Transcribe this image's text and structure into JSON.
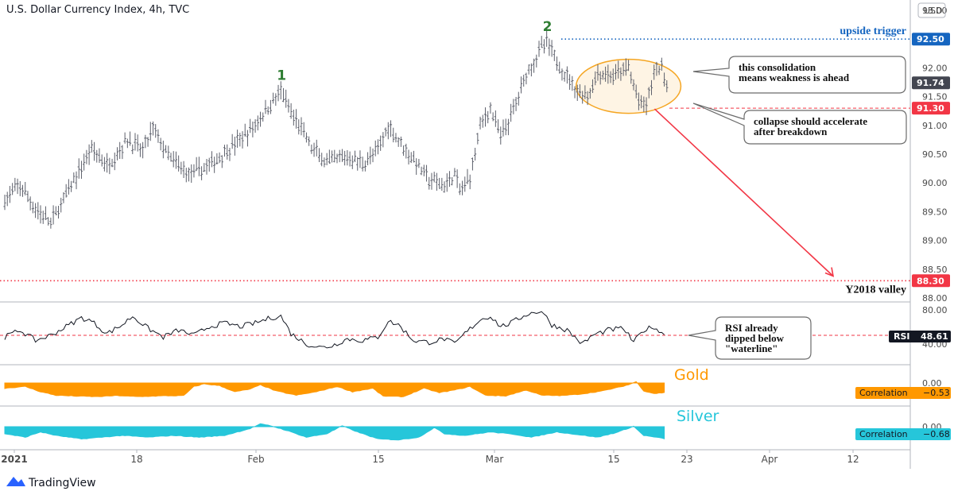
{
  "header": {
    "title": "U.S. Dollar Currency Index, 4h, TVC",
    "currency": "USD"
  },
  "footer": {
    "brand": "TradingView"
  },
  "chart_data": {
    "type": "ohlc",
    "title": "U.S. Dollar Currency Index, 4h, TVC",
    "y_ticks": [
      "93.00",
      "92.50",
      "92.00",
      "91.50",
      "91.00",
      "90.50",
      "90.00",
      "89.50",
      "89.00",
      "88.50",
      "88.00"
    ],
    "ylim": [
      88.0,
      93.0
    ],
    "x_ticks": [
      "2021",
      "18",
      "Feb",
      "15",
      "Mar",
      "15",
      "23",
      "Apr",
      "12"
    ],
    "price_path": [
      [
        0,
        89.7
      ],
      [
        6,
        89.95
      ],
      [
        12,
        89.55
      ],
      [
        18,
        89.3
      ],
      [
        26,
        89.95
      ],
      [
        34,
        90.6
      ],
      [
        40,
        90.3
      ],
      [
        48,
        90.75
      ],
      [
        54,
        90.55
      ],
      [
        58,
        90.95
      ],
      [
        64,
        90.45
      ],
      [
        72,
        90.15
      ],
      [
        80,
        90.3
      ],
      [
        88,
        90.6
      ],
      [
        96,
        90.9
      ],
      [
        102,
        91.25
      ],
      [
        108,
        91.6
      ],
      [
        112,
        91.2
      ],
      [
        116,
        90.95
      ],
      [
        120,
        90.6
      ],
      [
        126,
        90.35
      ],
      [
        134,
        90.45
      ],
      [
        140,
        90.35
      ],
      [
        146,
        90.55
      ],
      [
        150,
        91.0
      ],
      [
        154,
        90.75
      ],
      [
        160,
        90.4
      ],
      [
        166,
        90.05
      ],
      [
        172,
        89.95
      ],
      [
        176,
        90.15
      ],
      [
        178,
        89.85
      ],
      [
        182,
        90.1
      ],
      [
        186,
        91.0
      ],
      [
        190,
        91.3
      ],
      [
        194,
        90.8
      ],
      [
        198,
        91.15
      ],
      [
        204,
        91.9
      ],
      [
        210,
        92.35
      ],
      [
        212,
        92.45
      ],
      [
        216,
        92.1
      ],
      [
        220,
        91.85
      ],
      [
        224,
        91.6
      ],
      [
        228,
        91.5
      ],
      [
        232,
        91.9
      ],
      [
        238,
        91.85
      ],
      [
        244,
        92.0
      ],
      [
        248,
        91.4
      ],
      [
        251,
        91.35
      ],
      [
        254,
        91.9
      ],
      [
        257,
        92.05
      ],
      [
        259,
        91.7
      ]
    ],
    "ohlc_count": 260,
    "levels": [
      {
        "value": 92.5,
        "label": "92.50",
        "note": "upside trigger",
        "color": "#1565c0"
      },
      {
        "value": 91.74,
        "label": "91.74",
        "note": "",
        "color": "#434651"
      },
      {
        "value": 91.3,
        "label": "91.30",
        "note": "",
        "color": "#f23645"
      },
      {
        "value": 88.3,
        "label": "88.30",
        "note": "Y2018 valley",
        "color": "#f23645"
      }
    ],
    "wave_labels": [
      {
        "text": "1",
        "x": 108,
        "y": 91.6
      },
      {
        "text": "2",
        "x": 212,
        "y": 92.45
      }
    ],
    "forecast_arrow": {
      "from": [
        248,
        91.3
      ],
      "to": [
        310,
        88.38
      ],
      "color": "#f23645"
    },
    "consolidation_ellipse": {
      "x_from": 226,
      "x_to": 262,
      "y_center": 91.68,
      "color": "#f5a623"
    },
    "callouts": [
      {
        "lines": [
          "this consolidation",
          "means weakness is ahead"
        ]
      },
      {
        "lines": [
          "collapse should accelerate",
          "after breakdown"
        ]
      },
      {
        "lines": [
          "RSI already",
          "dipped below",
          "\"waterline\""
        ]
      }
    ],
    "rsi": {
      "label": "RSI",
      "value": "48.61",
      "y_ticks": [
        "80.00",
        "40.00"
      ],
      "waterline": 50,
      "path": [
        [
          0,
          48
        ],
        [
          6,
          56
        ],
        [
          12,
          44
        ],
        [
          18,
          50
        ],
        [
          24,
          60
        ],
        [
          30,
          70
        ],
        [
          34,
          66
        ],
        [
          40,
          52
        ],
        [
          46,
          62
        ],
        [
          50,
          72
        ],
        [
          56,
          58
        ],
        [
          62,
          48
        ],
        [
          68,
          56
        ],
        [
          74,
          50
        ],
        [
          80,
          60
        ],
        [
          86,
          64
        ],
        [
          92,
          60
        ],
        [
          98,
          64
        ],
        [
          104,
          70
        ],
        [
          108,
          72
        ],
        [
          112,
          52
        ],
        [
          118,
          40
        ],
        [
          124,
          36
        ],
        [
          128,
          38
        ],
        [
          134,
          46
        ],
        [
          140,
          44
        ],
        [
          146,
          48
        ],
        [
          150,
          66
        ],
        [
          154,
          62
        ],
        [
          160,
          44
        ],
        [
          166,
          42
        ],
        [
          172,
          46
        ],
        [
          176,
          40
        ],
        [
          180,
          52
        ],
        [
          186,
          68
        ],
        [
          190,
          72
        ],
        [
          194,
          60
        ],
        [
          198,
          64
        ],
        [
          204,
          74
        ],
        [
          210,
          78
        ],
        [
          214,
          62
        ],
        [
          220,
          56
        ],
        [
          226,
          40
        ],
        [
          230,
          50
        ],
        [
          236,
          56
        ],
        [
          242,
          58
        ],
        [
          246,
          42
        ],
        [
          250,
          56
        ],
        [
          254,
          60
        ],
        [
          257,
          52
        ]
      ]
    },
    "gold": {
      "name": "Gold",
      "color": "#ff9800",
      "label": "Correlation",
      "value": "−0.53",
      "y_tick": "0.00",
      "path": [
        [
          0,
          -0.3
        ],
        [
          8,
          -0.2
        ],
        [
          14,
          -0.5
        ],
        [
          20,
          -0.7
        ],
        [
          28,
          -0.75
        ],
        [
          36,
          -0.78
        ],
        [
          44,
          -0.72
        ],
        [
          52,
          -0.78
        ],
        [
          60,
          -0.74
        ],
        [
          70,
          -0.72
        ],
        [
          74,
          -0.2
        ],
        [
          78,
          -0.05
        ],
        [
          84,
          -0.15
        ],
        [
          90,
          -0.5
        ],
        [
          96,
          -0.35
        ],
        [
          100,
          -0.1
        ],
        [
          106,
          -0.45
        ],
        [
          114,
          -0.7
        ],
        [
          122,
          -0.5
        ],
        [
          130,
          -0.2
        ],
        [
          136,
          -0.5
        ],
        [
          144,
          -0.3
        ],
        [
          148,
          -0.75
        ],
        [
          156,
          -0.78
        ],
        [
          164,
          -0.3
        ],
        [
          170,
          -0.55
        ],
        [
          176,
          -0.4
        ],
        [
          182,
          -0.2
        ],
        [
          188,
          -0.7
        ],
        [
          196,
          -0.74
        ],
        [
          204,
          -0.4
        ],
        [
          210,
          -0.7
        ],
        [
          218,
          -0.72
        ],
        [
          226,
          -0.62
        ],
        [
          234,
          -0.45
        ],
        [
          240,
          -0.25
        ],
        [
          244,
          -0.1
        ],
        [
          247,
          0.08
        ],
        [
          250,
          -0.45
        ],
        [
          254,
          -0.6
        ],
        [
          258,
          -0.55
        ]
      ]
    },
    "silver": {
      "name": "Silver",
      "color": "#26c6da",
      "label": "Correlation",
      "value": "−0.68",
      "y_tick": "0.00",
      "path": [
        [
          0,
          -0.4
        ],
        [
          8,
          -0.6
        ],
        [
          14,
          -0.3
        ],
        [
          20,
          -0.5
        ],
        [
          30,
          -0.7
        ],
        [
          38,
          -0.6
        ],
        [
          46,
          -0.5
        ],
        [
          56,
          -0.6
        ],
        [
          66,
          -0.5
        ],
        [
          76,
          -0.6
        ],
        [
          86,
          -0.5
        ],
        [
          96,
          -0.1
        ],
        [
          100,
          0.15
        ],
        [
          104,
          0.05
        ],
        [
          110,
          -0.2
        ],
        [
          118,
          -0.6
        ],
        [
          126,
          -0.4
        ],
        [
          132,
          0.05
        ],
        [
          138,
          -0.3
        ],
        [
          146,
          -0.7
        ],
        [
          154,
          -0.75
        ],
        [
          162,
          -0.6
        ],
        [
          168,
          -0.05
        ],
        [
          172,
          -0.4
        ],
        [
          180,
          -0.5
        ],
        [
          190,
          -0.3
        ],
        [
          200,
          -0.45
        ],
        [
          206,
          -0.6
        ],
        [
          216,
          -0.3
        ],
        [
          224,
          -0.45
        ],
        [
          232,
          -0.6
        ],
        [
          240,
          -0.3
        ],
        [
          246,
          0.02
        ],
        [
          250,
          -0.5
        ],
        [
          258,
          -0.68
        ]
      ]
    }
  }
}
